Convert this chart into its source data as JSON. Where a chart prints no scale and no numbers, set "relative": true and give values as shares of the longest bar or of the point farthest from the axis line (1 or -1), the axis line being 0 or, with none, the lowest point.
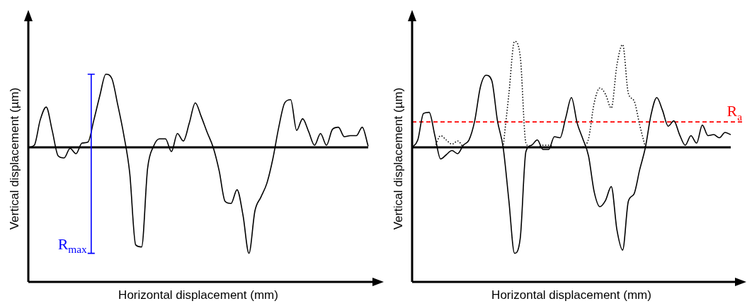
{
  "chart_data": [
    {
      "type": "line",
      "relative": true,
      "xlabel": "Horizontal displacement (mm)",
      "ylabel": "Vertical displacement (µm)",
      "categories": [
        null,
        null,
        null,
        null,
        null,
        null,
        null,
        null,
        null,
        null,
        null,
        null,
        null,
        null,
        null,
        null,
        null,
        null,
        null,
        null,
        null,
        null,
        null,
        null,
        null,
        null,
        null,
        null,
        null,
        null,
        null,
        null,
        null,
        null,
        null,
        null,
        null,
        null,
        null,
        null,
        null,
        null,
        null,
        null,
        null,
        null,
        null,
        null,
        null,
        null,
        null,
        null,
        null,
        null,
        null,
        null,
        null,
        null
      ],
      "series": [
        {
          "color": "#000000",
          "line_style": "solid",
          "values": [
            0,
            0.02,
            0.26,
            0.38,
            0.16,
            -0.08,
            -0.1,
            -0.01,
            -0.06,
            0.04,
            0.05,
            0.26,
            0.49,
            0.69,
            0.65,
            0.4,
            0.12,
            -0.24,
            -0.92,
            -0.94,
            -0.2,
            0.01,
            0.08,
            0.08,
            -0.04,
            0.13,
            0.06,
            0.23,
            0.42,
            0.29,
            0.14,
            0,
            -0.22,
            -0.51,
            -0.53,
            -0.4,
            -0.64,
            -1,
            -0.6,
            -0.47,
            -0.34,
            -0.11,
            0.19,
            0.42,
            0.45,
            0.16,
            0.27,
            0.15,
            0.02,
            0.13,
            0.02,
            0.17,
            0.19,
            0.1,
            0.11,
            0.11,
            0.19,
            0.01
          ]
        }
      ],
      "annotations": [
        "R$_{max}$"
      ],
      "marker": "none",
      "legend": false
    },
    {
      "type": "line",
      "relative": true,
      "xlabel": "Horizontal displacement (mm)",
      "ylabel": "Vertical displacement (µm)",
      "categories": [
        null,
        null,
        null,
        null,
        null,
        null,
        null,
        null,
        null,
        null,
        null,
        null,
        null,
        null,
        null,
        null,
        null,
        null,
        null,
        null,
        null,
        null,
        null,
        null,
        null,
        null,
        null,
        null,
        null,
        null,
        null,
        null,
        null,
        null,
        null,
        null,
        null,
        null,
        null,
        null,
        null,
        null,
        null,
        null,
        null,
        null,
        null,
        null,
        null,
        null,
        null,
        null,
        null,
        null,
        null,
        null,
        null
      ],
      "series": [
        {
          "color": "#000000",
          "line_style": "solid",
          "values": [
            0,
            0.07,
            0.32,
            0.33,
            0.11,
            -0.11,
            -0.07,
            -0.03,
            -0.06,
            0.02,
            0.07,
            0.25,
            0.57,
            0.68,
            0.63,
            0.25,
            0,
            -0.5,
            -1,
            -0.86,
            -0.04,
            0.02,
            0.07,
            -0.02,
            -0.02,
            0.1,
            0.09,
            0.28,
            0.47,
            0.23,
            0.08,
            -0.08,
            -0.42,
            -0.56,
            -0.5,
            -0.37,
            -0.78,
            -0.97,
            -0.51,
            -0.44,
            -0.21,
            0,
            0.31,
            0.47,
            0.35,
            0.2,
            0.25,
            0.12,
            0.02,
            0.11,
            0.04,
            0.21,
            0.11,
            0.12,
            0.09,
            0.14,
            0.12
          ]
        },
        {
          "color": "#000000",
          "line_style": "dotted",
          "values": [
            null,
            null,
            null,
            null,
            0,
            0.11,
            0.07,
            0.03,
            0.06,
            0,
            null,
            null,
            null,
            null,
            null,
            null,
            0,
            0.5,
            1,
            0.86,
            0.04,
            0,
            0,
            0.02,
            0.02,
            0,
            null,
            null,
            null,
            null,
            0,
            0.08,
            0.42,
            0.56,
            0.5,
            0.37,
            0.78,
            0.97,
            0.51,
            0.44,
            0.21,
            0,
            null,
            null,
            null,
            null,
            null,
            null,
            null,
            null,
            null,
            null,
            null,
            null,
            null,
            null,
            null
          ]
        }
      ],
      "ref_lines": [
        {
          "axis": "y",
          "value": 0.24,
          "label": "R$_{a}$",
          "color": "#ff0000",
          "line_style": "dashed"
        }
      ],
      "marker": "none",
      "legend": false
    }
  ]
}
